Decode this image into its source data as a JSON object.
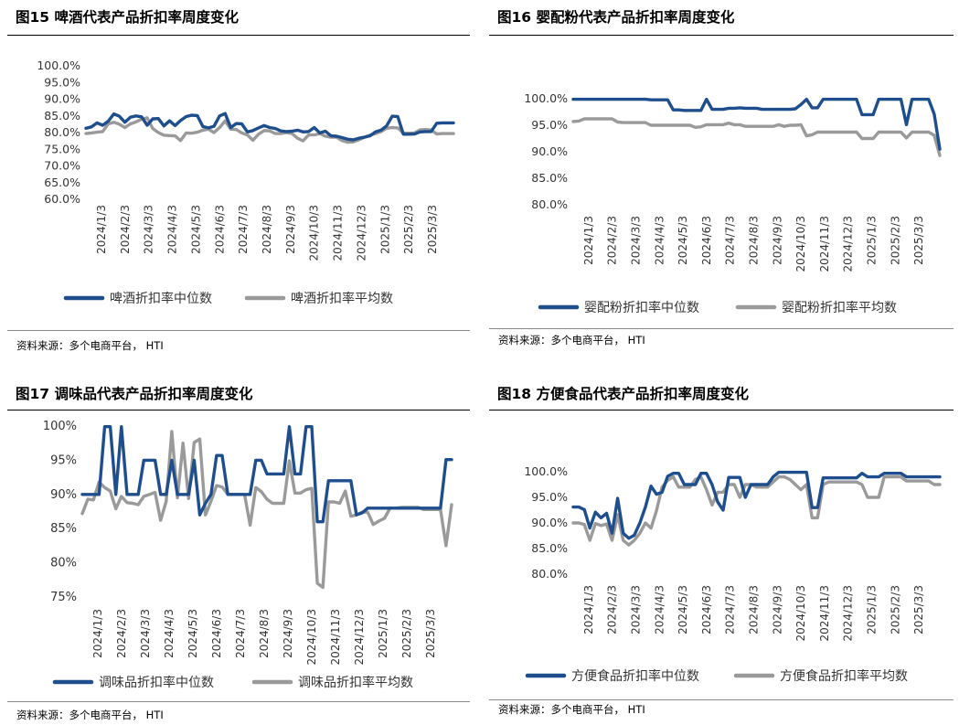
{
  "source_text": "资料来源：多个电商平台， HTI",
  "colors": {
    "median": "#1f4e8c",
    "avg": "#9a9a9a"
  },
  "chart_data": [
    {
      "id": "beer",
      "type": "line",
      "title": "图15 啤酒代表产品折扣率周度变化",
      "y_ticks": [
        "100.0%",
        "95.0%",
        "90.0%",
        "85.0%",
        "80.0%",
        "75.0%",
        "70.0%",
        "65.0%",
        "60.0%"
      ],
      "ylim": [
        0.6,
        1.0
      ],
      "x_ticks": [
        "2024/1/3",
        "2024/2/3",
        "2024/3/3",
        "2024/4/3",
        "2024/5/3",
        "2024/6/3",
        "2024/7/3",
        "2024/8/3",
        "2024/9/3",
        "2024/10/3",
        "2024/11/3",
        "2024/12/3",
        "2025/1/3",
        "2025/2/3",
        "2025/3/3"
      ],
      "n_points": 67,
      "series": [
        {
          "name": "啤酒折扣率中位数",
          "color_key": "median",
          "values": [
            0.813,
            0.817,
            0.829,
            0.822,
            0.834,
            0.856,
            0.849,
            0.831,
            0.846,
            0.85,
            0.847,
            0.822,
            0.841,
            0.842,
            0.82,
            0.835,
            0.821,
            0.836,
            0.848,
            0.852,
            0.851,
            0.818,
            0.814,
            0.819,
            0.85,
            0.857,
            0.815,
            0.827,
            0.826,
            0.802,
            0.806,
            0.814,
            0.821,
            0.815,
            0.812,
            0.805,
            0.803,
            0.804,
            0.807,
            0.802,
            0.803,
            0.815,
            0.799,
            0.804,
            0.79,
            0.789,
            0.785,
            0.78,
            0.778,
            0.783,
            0.786,
            0.79,
            0.802,
            0.807,
            0.82,
            0.849,
            0.848,
            0.795,
            0.795,
            0.796,
            0.802,
            0.803,
            0.803,
            0.828,
            0.829,
            0.829,
            0.829
          ]
        },
        {
          "name": "啤酒折扣率平均数",
          "color_key": "avg",
          "values": [
            0.797,
            0.799,
            0.801,
            0.803,
            0.826,
            0.831,
            0.825,
            0.815,
            0.826,
            0.832,
            0.84,
            0.844,
            0.812,
            0.8,
            0.792,
            0.791,
            0.79,
            0.776,
            0.799,
            0.798,
            0.801,
            0.807,
            0.81,
            0.8,
            0.815,
            0.835,
            0.81,
            0.809,
            0.799,
            0.793,
            0.777,
            0.795,
            0.806,
            0.805,
            0.797,
            0.797,
            0.8,
            0.797,
            0.783,
            0.775,
            0.793,
            0.793,
            0.797,
            0.789,
            0.786,
            0.786,
            0.776,
            0.771,
            0.772,
            0.778,
            0.786,
            0.792,
            0.797,
            0.803,
            0.813,
            0.815,
            0.814,
            0.798,
            0.798,
            0.799,
            0.808,
            0.809,
            0.808,
            0.796,
            0.797,
            0.797,
            0.797
          ]
        }
      ]
    },
    {
      "id": "formula",
      "type": "line",
      "title": "图16 婴配粉代表产品折扣率周度变化",
      "y_ticks": [
        "100.0%",
        "95.0%",
        "90.0%",
        "85.0%",
        "80.0%"
      ],
      "ylim": [
        0.8,
        1.0
      ],
      "x_ticks": [
        "2024/1/3",
        "2024/2/3",
        "2024/3/3",
        "2024/4/3",
        "2024/5/3",
        "2024/6/3",
        "2024/7/3",
        "2024/8/3",
        "2024/9/3",
        "2024/10/3",
        "2024/11/3",
        "2024/12/3",
        "2025/1/3",
        "2025/2/3",
        "2025/3/3"
      ],
      "n_points": 67,
      "series": [
        {
          "name": "婴配粉折扣率中位数",
          "color_key": "median",
          "values": [
            0.999,
            0.999,
            0.999,
            0.999,
            0.999,
            0.999,
            0.999,
            0.999,
            0.999,
            0.999,
            0.999,
            0.999,
            0.999,
            0.999,
            0.998,
            0.998,
            0.998,
            0.998,
            0.979,
            0.979,
            0.978,
            0.978,
            0.978,
            0.978,
            0.999,
            0.98,
            0.98,
            0.98,
            0.982,
            0.982,
            0.983,
            0.982,
            0.982,
            0.982,
            0.98,
            0.98,
            0.98,
            0.98,
            0.98,
            0.98,
            0.981,
            0.989,
            0.999,
            0.983,
            0.983,
            0.999,
            0.999,
            0.999,
            0.999,
            0.999,
            0.999,
            0.999,
            0.97,
            0.97,
            0.97,
            0.999,
            0.999,
            0.999,
            0.999,
            0.999,
            0.951,
            0.999,
            0.999,
            0.999,
            0.999,
            0.971,
            0.905
          ]
        },
        {
          "name": "婴配粉折扣率平均数",
          "color_key": "avg",
          "values": [
            0.957,
            0.958,
            0.962,
            0.962,
            0.962,
            0.962,
            0.962,
            0.962,
            0.956,
            0.955,
            0.955,
            0.955,
            0.955,
            0.955,
            0.95,
            0.95,
            0.95,
            0.95,
            0.95,
            0.95,
            0.95,
            0.95,
            0.946,
            0.947,
            0.951,
            0.951,
            0.951,
            0.951,
            0.954,
            0.951,
            0.951,
            0.948,
            0.948,
            0.948,
            0.948,
            0.948,
            0.948,
            0.951,
            0.948,
            0.95,
            0.95,
            0.951,
            0.93,
            0.932,
            0.937,
            0.937,
            0.937,
            0.937,
            0.937,
            0.937,
            0.937,
            0.937,
            0.925,
            0.925,
            0.925,
            0.937,
            0.937,
            0.937,
            0.937,
            0.937,
            0.926,
            0.937,
            0.937,
            0.937,
            0.937,
            0.931,
            0.893
          ]
        }
      ]
    },
    {
      "id": "condiment",
      "type": "line",
      "title": "图17 调味品代表产品折扣率周度变化",
      "y_ticks": [
        "100%",
        "95%",
        "90%",
        "85%",
        "80%",
        "75%"
      ],
      "ylim": [
        0.75,
        1.0
      ],
      "x_ticks": [
        "2024/1/3",
        "2024/2/3",
        "2024/3/3",
        "2024/4/3",
        "2024/5/3",
        "2024/6/3",
        "2024/7/3",
        "2024/8/3",
        "2024/9/3",
        "2024/10/3",
        "2024/11/3",
        "2024/12/3",
        "2025/1/3",
        "2025/2/3",
        "2025/3/3"
      ],
      "n_points": 67,
      "series": [
        {
          "name": "调味品折扣率中位数",
          "color_key": "median",
          "values": [
            0.9,
            0.9,
            0.9,
            0.9,
            0.999,
            0.999,
            0.9,
            0.999,
            0.9,
            0.9,
            0.9,
            0.95,
            0.95,
            0.95,
            0.9,
            0.9,
            0.95,
            0.9,
            0.9,
            0.9,
            0.95,
            0.87,
            0.887,
            0.9,
            0.957,
            0.957,
            0.9,
            0.9,
            0.9,
            0.9,
            0.9,
            0.95,
            0.95,
            0.93,
            0.93,
            0.93,
            0.93,
            0.999,
            0.93,
            0.93,
            0.999,
            0.999,
            0.86,
            0.86,
            0.92,
            0.92,
            0.92,
            0.92,
            0.92,
            0.87,
            0.873,
            0.88,
            0.88,
            0.88,
            0.88,
            0.88,
            0.88,
            0.88,
            0.88,
            0.88,
            0.88,
            0.88,
            0.88,
            0.88,
            0.88,
            0.951,
            0.951
          ]
        },
        {
          "name": "调味品折扣率平均数",
          "color_key": "avg",
          "values": [
            0.872,
            0.893,
            0.892,
            0.918,
            0.91,
            0.905,
            0.879,
            0.897,
            0.888,
            0.887,
            0.885,
            0.897,
            0.9,
            0.903,
            0.862,
            0.89,
            0.992,
            0.895,
            0.975,
            0.894,
            0.976,
            0.981,
            0.87,
            0.89,
            0.913,
            0.911,
            0.9,
            0.9,
            0.9,
            0.9,
            0.855,
            0.91,
            0.904,
            0.893,
            0.887,
            0.887,
            0.887,
            0.949,
            0.902,
            0.902,
            0.907,
            0.909,
            0.77,
            0.764,
            0.889,
            0.889,
            0.887,
            0.905,
            0.868,
            0.87,
            0.874,
            0.874,
            0.856,
            0.861,
            0.865,
            0.88,
            0.88,
            0.881,
            0.881,
            0.881,
            0.881,
            0.878,
            0.878,
            0.878,
            0.878,
            0.825,
            0.885
          ]
        }
      ]
    },
    {
      "id": "instant",
      "type": "line",
      "title": "图18 方便食品代表产品折扣率周度变化",
      "y_ticks": [
        "100.0%",
        "95.0%",
        "90.0%",
        "85.0%",
        "80.0%"
      ],
      "ylim": [
        0.8,
        1.0
      ],
      "x_ticks": [
        "2024/1/3",
        "2024/2/3",
        "2024/3/3",
        "2024/4/3",
        "2024/5/3",
        "2024/6/3",
        "2024/7/3",
        "2024/8/3",
        "2024/9/3",
        "2024/10/3",
        "2024/11/3",
        "2024/12/3",
        "2025/1/3",
        "2025/2/3",
        "2025/3/3"
      ],
      "n_points": 67,
      "series": [
        {
          "name": "方便食品折扣率中位数",
          "color_key": "median",
          "values": [
            0.931,
            0.931,
            0.926,
            0.89,
            0.921,
            0.91,
            0.919,
            0.88,
            0.948,
            0.88,
            0.87,
            0.876,
            0.9,
            0.931,
            0.972,
            0.956,
            0.96,
            0.991,
            0.997,
            0.997,
            0.975,
            0.975,
            0.975,
            0.997,
            0.997,
            0.975,
            0.941,
            0.925,
            0.989,
            0.989,
            0.989,
            0.95,
            0.975,
            0.975,
            0.975,
            0.975,
            0.99,
            0.999,
            0.999,
            0.999,
            0.999,
            0.999,
            0.999,
            0.93,
            0.93,
            0.988,
            0.988,
            0.988,
            0.988,
            0.988,
            0.988,
            0.988,
            0.997,
            0.99,
            0.99,
            0.99,
            0.997,
            0.997,
            0.997,
            0.997,
            0.99,
            0.99,
            0.99,
            0.99,
            0.99,
            0.99,
            0.99
          ]
        },
        {
          "name": "方便食品折扣率平均数",
          "color_key": "avg",
          "values": [
            0.9,
            0.9,
            0.897,
            0.866,
            0.899,
            0.895,
            0.898,
            0.866,
            0.916,
            0.866,
            0.857,
            0.866,
            0.88,
            0.9,
            0.89,
            0.924,
            0.97,
            0.983,
            0.99,
            0.97,
            0.97,
            0.97,
            0.985,
            0.99,
            0.965,
            0.935,
            0.96,
            0.96,
            0.975,
            0.975,
            0.95,
            0.975,
            0.975,
            0.97,
            0.97,
            0.97,
            0.98,
            0.99,
            0.99,
            0.985,
            0.975,
            0.965,
            0.975,
            0.91,
            0.91,
            0.975,
            0.98,
            0.98,
            0.98,
            0.98,
            0.98,
            0.98,
            0.975,
            0.95,
            0.95,
            0.95,
            0.99,
            0.99,
            0.99,
            0.99,
            0.982,
            0.982,
            0.982,
            0.982,
            0.982,
            0.975,
            0.975
          ]
        }
      ]
    }
  ]
}
